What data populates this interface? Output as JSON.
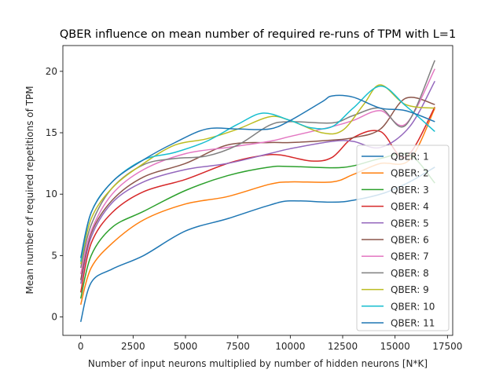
{
  "chart_data": {
    "type": "line",
    "title": "QBER influence on mean number of required re-runs of TPM with L=1",
    "xlabel": "Number of input neurons multiplied by number of hidden neurons [N*K]",
    "ylabel": "Mean number of required repetitions of TPM",
    "xlim": [
      -850,
      17750
    ],
    "ylim": [
      -1.5,
      22.1
    ],
    "xticks": [
      0,
      2500,
      5000,
      7500,
      10000,
      12500,
      15000,
      17500
    ],
    "yticks": [
      0,
      5,
      10,
      15,
      20
    ],
    "grid": false,
    "legend_position": "center-right",
    "series": [
      {
        "name": "QBER: 1",
        "color": "#1f77b4",
        "x": [
          0,
          500,
          1500,
          3000,
          5000,
          7000,
          9000,
          10000,
          12000,
          13000,
          14500,
          15700,
          16900
        ],
        "y": [
          -0.4,
          2.8,
          3.9,
          5.0,
          7.0,
          8.0,
          9.1,
          9.45,
          9.35,
          9.5,
          10.1,
          11.0,
          12.2
        ]
      },
      {
        "name": "QBER: 2",
        "color": "#ff7f0e",
        "x": [
          0,
          500,
          1500,
          3000,
          5000,
          7000,
          9000,
          10000,
          12000,
          13000,
          14300,
          15700,
          16900
        ],
        "y": [
          1.0,
          4.0,
          6.0,
          7.9,
          9.2,
          9.8,
          10.8,
          11.0,
          11.0,
          11.6,
          12.5,
          12.8,
          17.0
        ]
      },
      {
        "name": "QBER: 3",
        "color": "#2ca02c",
        "x": [
          0,
          500,
          1500,
          3000,
          5000,
          7000,
          9000,
          10000,
          12000,
          13000,
          14300,
          15700,
          16900
        ],
        "y": [
          1.5,
          5.0,
          7.3,
          8.6,
          10.3,
          11.5,
          12.2,
          12.25,
          12.15,
          12.3,
          12.9,
          13.2,
          10.9
        ]
      },
      {
        "name": "QBER: 4",
        "color": "#d62728",
        "x": [
          0,
          500,
          1500,
          3000,
          5000,
          7000,
          8500,
          9500,
          11000,
          12000,
          13000,
          14300,
          15500,
          16900
        ],
        "y": [
          2.0,
          6.0,
          8.5,
          10.2,
          11.2,
          12.5,
          13.1,
          13.2,
          12.7,
          13.0,
          14.6,
          15.1,
          13.0,
          17.1
        ]
      },
      {
        "name": "QBER: 5",
        "color": "#9467bd",
        "x": [
          0,
          500,
          1500,
          3000,
          5000,
          7000,
          9000,
          10000,
          12000,
          13000,
          14300,
          15700,
          16900
        ],
        "y": [
          2.7,
          6.5,
          9.3,
          11.0,
          12.0,
          12.5,
          13.3,
          13.7,
          14.3,
          14.3,
          13.8,
          15.5,
          19.2
        ]
      },
      {
        "name": "QBER: 6",
        "color": "#8c564b",
        "x": [
          0,
          500,
          1500,
          3000,
          5000,
          7000,
          9000,
          10000,
          12000,
          13000,
          14300,
          15500,
          16900
        ],
        "y": [
          3.0,
          6.8,
          9.5,
          11.4,
          12.5,
          14.0,
          14.2,
          14.2,
          14.4,
          14.6,
          15.3,
          17.8,
          17.3
        ]
      },
      {
        "name": "QBER: 7",
        "color": "#e377c2",
        "x": [
          0,
          500,
          1500,
          3000,
          5000,
          7000,
          9000,
          10000,
          12000,
          13000,
          14300,
          15500,
          16900
        ],
        "y": [
          3.5,
          7.0,
          10.0,
          12.0,
          13.3,
          13.8,
          14.3,
          14.7,
          15.5,
          16.0,
          16.8,
          15.7,
          20.2
        ]
      },
      {
        "name": "QBER: 8",
        "color": "#7f7f7f",
        "x": [
          0,
          500,
          1500,
          3000,
          4500,
          6000,
          7500,
          9000,
          10000,
          12000,
          13000,
          14300,
          15500,
          16900
        ],
        "y": [
          4.0,
          7.5,
          10.5,
          12.4,
          12.9,
          13.1,
          14.0,
          15.6,
          15.9,
          15.8,
          16.4,
          17.0,
          15.6,
          20.9
        ]
      },
      {
        "name": "QBER: 9",
        "color": "#bcbd22",
        "x": [
          0,
          500,
          1500,
          3000,
          4500,
          6000,
          7500,
          9000,
          10000,
          11500,
          12500,
          13500,
          14300,
          15500,
          16900
        ],
        "y": [
          4.3,
          8.0,
          10.5,
          12.5,
          14.0,
          14.5,
          15.3,
          16.3,
          16.0,
          15.0,
          15.2,
          17.3,
          18.9,
          17.3,
          17.0
        ]
      },
      {
        "name": "QBER: 10",
        "color": "#17becf",
        "x": [
          0,
          500,
          1500,
          3000,
          4500,
          6000,
          7500,
          8700,
          10000,
          11000,
          12000,
          13000,
          14300,
          15500,
          16900
        ],
        "y": [
          4.5,
          8.5,
          11.0,
          12.8,
          13.4,
          14.3,
          15.7,
          16.6,
          16.0,
          15.4,
          15.5,
          17.0,
          18.8,
          17.2,
          15.1
        ]
      },
      {
        "name": "QBER: 11",
        "color": "#1f77b4",
        "x": [
          0,
          500,
          1500,
          3000,
          4500,
          6000,
          7500,
          9000,
          10000,
          11500,
          12000,
          13000,
          14300,
          15500,
          16900
        ],
        "y": [
          4.8,
          8.5,
          11.0,
          12.8,
          14.2,
          15.3,
          15.3,
          15.3,
          16.0,
          17.5,
          18.0,
          17.9,
          17.0,
          16.8,
          15.9
        ]
      }
    ]
  }
}
